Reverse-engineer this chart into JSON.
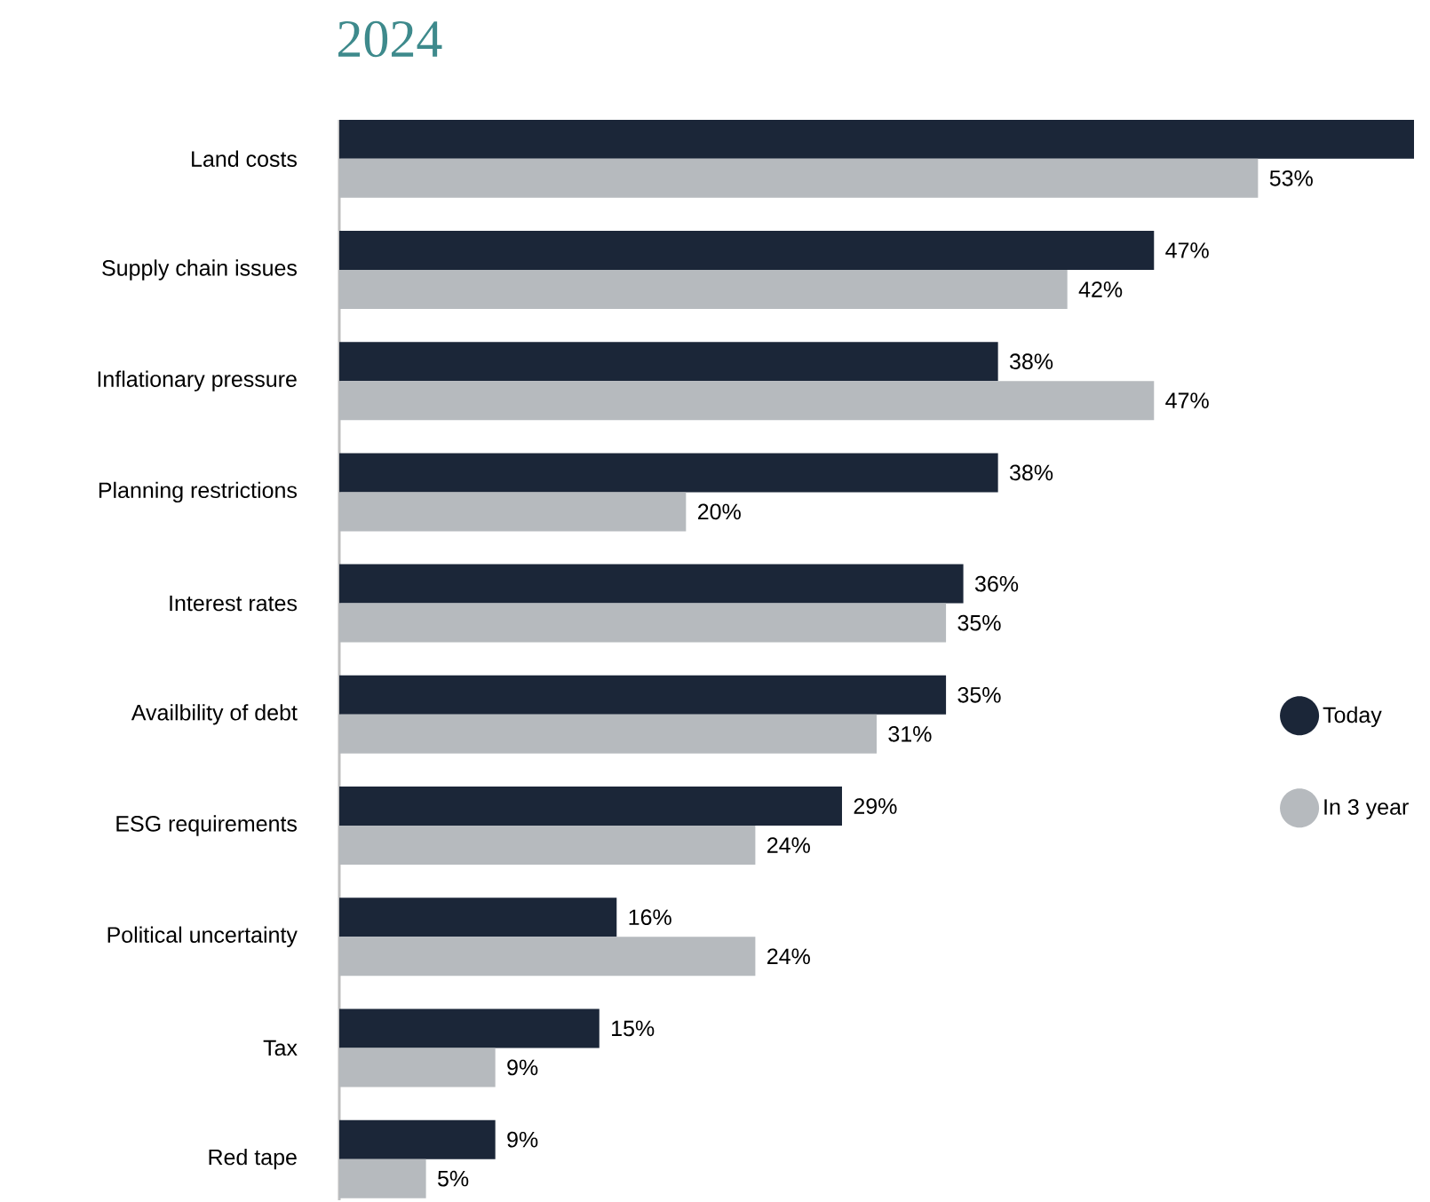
{
  "chart_data": {
    "type": "bar",
    "orientation": "horizontal",
    "title": "2024",
    "categories": [
      "Land costs",
      "Supply chain issues",
      "Inflationary pressure",
      "Planning restrictions",
      "Interest rates",
      "Availbility of debt",
      "ESG requirements",
      "Political uncertainty",
      "Tax",
      "Red tape"
    ],
    "series": [
      {
        "name": "Today",
        "color": "#1b2638",
        "values": [
          62,
          47,
          38,
          38,
          36,
          35,
          29,
          16,
          15,
          9
        ],
        "value_labels": [
          null,
          "47%",
          "38%",
          "38%",
          "36%",
          "35%",
          "29%",
          "16%",
          "15%",
          "9%"
        ]
      },
      {
        "name": "In 3 year",
        "color": "#b6babe",
        "values": [
          53,
          42,
          47,
          20,
          35,
          31,
          24,
          24,
          9,
          5
        ],
        "value_labels": [
          "53%",
          "42%",
          "47%",
          "20%",
          "35%",
          "31%",
          "24%",
          "24%",
          "9%",
          "5%"
        ]
      }
    ],
    "legend": "right"
  }
}
